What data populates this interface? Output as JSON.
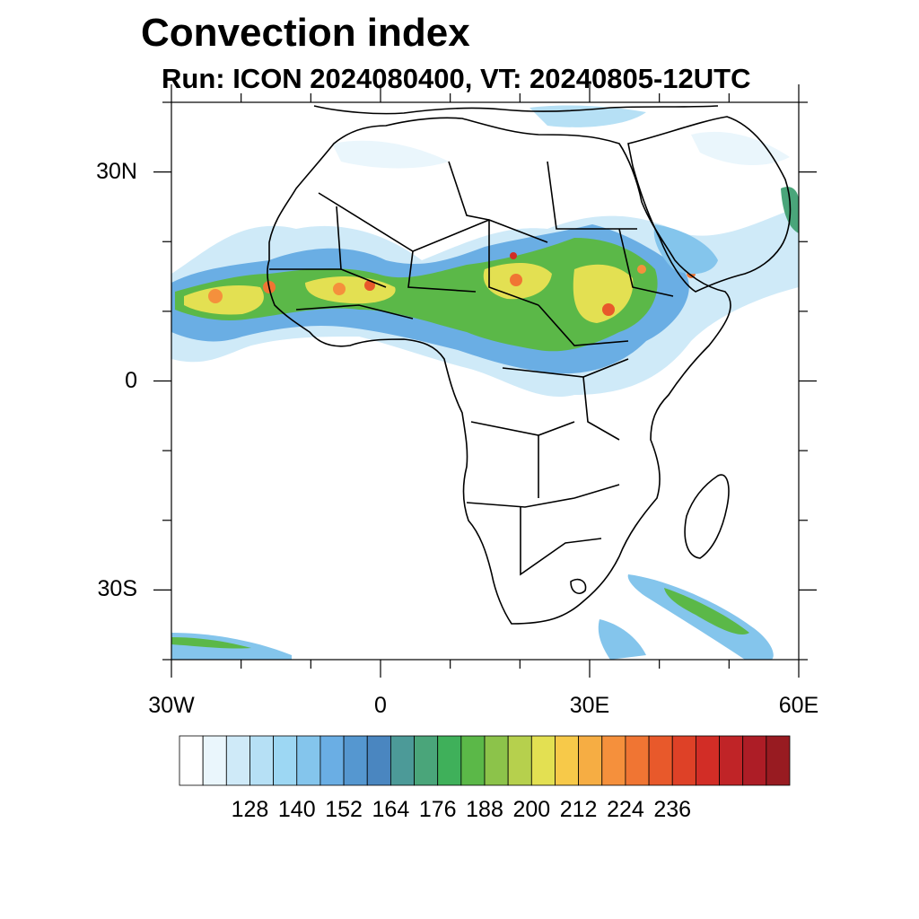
{
  "title": "Convection index",
  "subtitle": "Run: ICON 2024080400,  VT: 20240805-12UTC",
  "axes": {
    "x_ticks": [
      {
        "value": -30,
        "label": "30W"
      },
      {
        "value": 0,
        "label": "0"
      },
      {
        "value": 30,
        "label": "30E"
      },
      {
        "value": 60,
        "label": "60E"
      }
    ],
    "y_ticks": [
      {
        "value": 30,
        "label": "30N"
      },
      {
        "value": 0,
        "label": "0"
      },
      {
        "value": -30,
        "label": "30S"
      }
    ],
    "lon_range": [
      -30,
      60
    ],
    "lat_range": [
      -40,
      40
    ]
  },
  "colorbar": {
    "labels": [
      "128",
      "140",
      "152",
      "164",
      "176",
      "188",
      "200",
      "212",
      "224",
      "236"
    ],
    "colors": [
      "#ffffff",
      "#eaf6fc",
      "#cfeaf8",
      "#b6e0f5",
      "#9dd7f3",
      "#84c5ec",
      "#6aaee4",
      "#5597d0",
      "#4a86c0",
      "#4c9a98",
      "#4aa57a",
      "#3fb05a",
      "#5bb848",
      "#8cc34a",
      "#b6d04d",
      "#e3e052",
      "#f7c949",
      "#f6ad43",
      "#f5903c",
      "#f07533",
      "#e8592b",
      "#de4127",
      "#d22d26",
      "#c02427",
      "#ad1d26",
      "#981b21"
    ]
  },
  "field_palette": {
    "light": "#b6e0f5",
    "blue": "#5597d0",
    "green": "#4aa57a",
    "yellow": "#e3e052",
    "orange": "#f5903c",
    "red": "#d22d26"
  }
}
